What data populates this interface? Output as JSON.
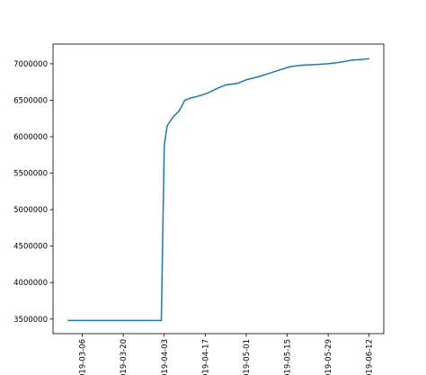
{
  "chart_data": {
    "type": "line",
    "x": [
      "2019-03-01",
      "2019-04-02",
      "2019-04-03",
      "2019-04-04",
      "2019-04-06",
      "2019-04-08",
      "2019-04-09",
      "2019-04-10",
      "2019-04-12",
      "2019-04-15",
      "2019-04-18",
      "2019-04-21",
      "2019-04-24",
      "2019-04-28",
      "2019-05-01",
      "2019-05-05",
      "2019-05-09",
      "2019-05-12",
      "2019-05-16",
      "2019-05-20",
      "2019-05-25",
      "2019-05-29",
      "2019-06-02",
      "2019-06-06",
      "2019-06-10",
      "2019-06-12"
    ],
    "series": [
      {
        "color": "#1f77b4",
        "values": [
          3480000,
          3480000,
          5880000,
          6150000,
          6270000,
          6350000,
          6420000,
          6500000,
          6530000,
          6560000,
          6600000,
          6660000,
          6710000,
          6730000,
          6780000,
          6820000,
          6870000,
          6910000,
          6960000,
          6980000,
          6990000,
          7000000,
          7020000,
          7050000,
          7060000,
          7070000
        ]
      }
    ],
    "xlim": [
      "2019-02-24",
      "2019-06-17"
    ],
    "xticks": [
      "2019-03-06",
      "2019-03-20",
      "2019-04-03",
      "2019-04-17",
      "2019-05-01",
      "2019-05-15",
      "2019-05-29",
      "2019-06-12"
    ],
    "ylim": [
      3300000,
      7270000
    ],
    "yticks": [
      3500000,
      4000000,
      4500000,
      5000000,
      5500000,
      6000000,
      6500000,
      7000000
    ]
  }
}
